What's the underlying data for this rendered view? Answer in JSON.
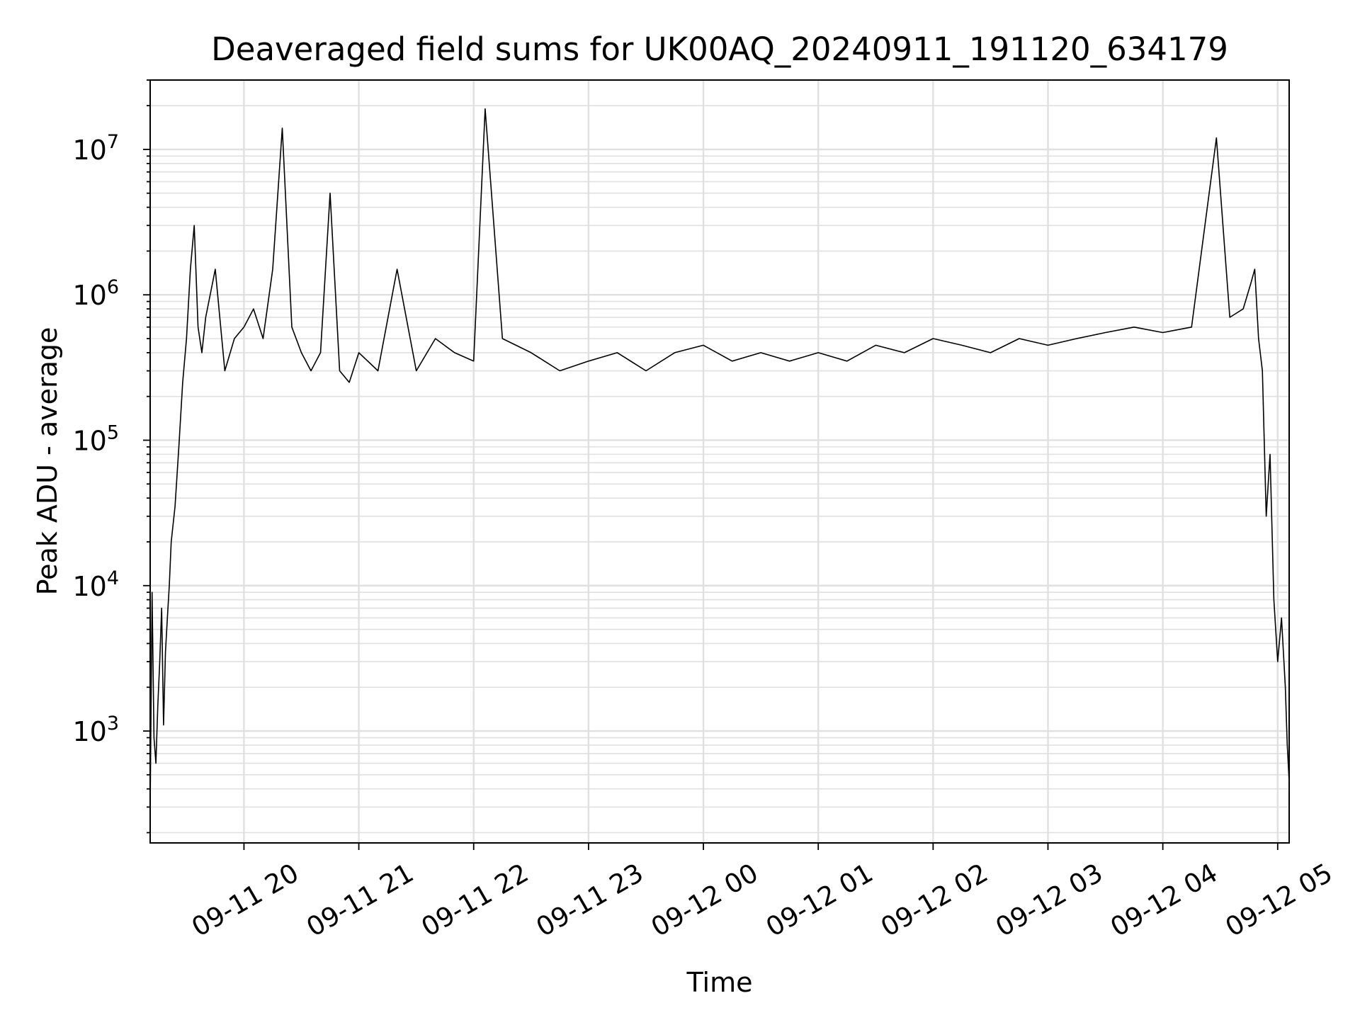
{
  "chart_data": {
    "type": "line",
    "title": "Deaveraged field sums for UK00AQ_20240911_191120_634179",
    "xlabel": "Time",
    "ylabel": "Peak ADU - average",
    "yscale": "log",
    "grid": true,
    "grid_minor": true,
    "legend": "none",
    "line_color": "#000000",
    "grid_color": "#e0e0e0",
    "xlim": [
      "2024-09-11 19:11",
      "2024-09-12 05:06"
    ],
    "ylim": [
      170,
      30000000
    ],
    "x_ticks": [
      {
        "time": "2024-09-11 20:00",
        "label": "09-11 20"
      },
      {
        "time": "2024-09-11 21:00",
        "label": "09-11 21"
      },
      {
        "time": "2024-09-11 22:00",
        "label": "09-11 22"
      },
      {
        "time": "2024-09-11 23:00",
        "label": "09-11 23"
      },
      {
        "time": "2024-09-12 00:00",
        "label": "09-12 00"
      },
      {
        "time": "2024-09-12 01:00",
        "label": "09-12 01"
      },
      {
        "time": "2024-09-12 02:00",
        "label": "09-12 02"
      },
      {
        "time": "2024-09-12 03:00",
        "label": "09-12 03"
      },
      {
        "time": "2024-09-12 04:00",
        "label": "09-12 04"
      },
      {
        "time": "2024-09-12 05:00",
        "label": "09-12 05"
      }
    ],
    "y_ticks": [
      {
        "value": 1000,
        "label": "10",
        "exp": "3"
      },
      {
        "value": 10000,
        "label": "10",
        "exp": "4"
      },
      {
        "value": 100000,
        "label": "10",
        "exp": "5"
      },
      {
        "value": 1000000,
        "label": "10",
        "exp": "6"
      },
      {
        "value": 10000000,
        "label": "10",
        "exp": "7"
      }
    ],
    "series": [
      {
        "x": [
          "2024-09-11 19:11",
          "2024-09-11 19:12",
          "2024-09-11 19:13",
          "2024-09-11 19:14",
          "2024-09-11 19:15",
          "2024-09-11 19:16",
          "2024-09-11 19:17",
          "2024-09-11 19:18",
          "2024-09-11 19:19",
          "2024-09-11 19:20",
          "2024-09-11 19:21",
          "2024-09-11 19:22",
          "2024-09-11 19:24",
          "2024-09-11 19:26",
          "2024-09-11 19:28",
          "2024-09-11 19:30",
          "2024-09-11 19:32",
          "2024-09-11 19:34",
          "2024-09-11 19:36",
          "2024-09-11 19:38",
          "2024-09-11 19:40",
          "2024-09-11 19:45",
          "2024-09-11 19:50",
          "2024-09-11 19:55",
          "2024-09-11 20:00",
          "2024-09-11 20:05",
          "2024-09-11 20:10",
          "2024-09-11 20:15",
          "2024-09-11 20:20",
          "2024-09-11 20:25",
          "2024-09-11 20:30",
          "2024-09-11 20:35",
          "2024-09-11 20:40",
          "2024-09-11 20:45",
          "2024-09-11 20:50",
          "2024-09-11 20:55",
          "2024-09-11 21:00",
          "2024-09-11 21:10",
          "2024-09-11 21:20",
          "2024-09-11 21:30",
          "2024-09-11 21:40",
          "2024-09-11 21:50",
          "2024-09-11 22:00",
          "2024-09-11 22:06",
          "2024-09-11 22:15",
          "2024-09-11 22:30",
          "2024-09-11 22:45",
          "2024-09-11 23:00",
          "2024-09-11 23:15",
          "2024-09-11 23:30",
          "2024-09-11 23:45",
          "2024-09-12 00:00",
          "2024-09-12 00:15",
          "2024-09-12 00:30",
          "2024-09-12 00:45",
          "2024-09-12 01:00",
          "2024-09-12 01:15",
          "2024-09-12 01:30",
          "2024-09-12 01:45",
          "2024-09-12 02:00",
          "2024-09-12 02:15",
          "2024-09-12 02:30",
          "2024-09-12 02:45",
          "2024-09-12 03:00",
          "2024-09-12 03:15",
          "2024-09-12 03:30",
          "2024-09-12 03:45",
          "2024-09-12 04:00",
          "2024-09-12 04:15",
          "2024-09-12 04:28",
          "2024-09-12 04:35",
          "2024-09-12 04:42",
          "2024-09-12 04:46",
          "2024-09-12 04:48",
          "2024-09-12 04:50",
          "2024-09-12 04:52",
          "2024-09-12 04:54",
          "2024-09-12 04:56",
          "2024-09-12 04:58",
          "2024-09-12 05:00",
          "2024-09-12 05:02",
          "2024-09-12 05:04",
          "2024-09-12 05:05",
          "2024-09-12 05:06"
        ],
        "values": [
          300,
          9000,
          900,
          600,
          1500,
          3000,
          7000,
          1100,
          3500,
          6000,
          10000,
          20000,
          35000,
          90000,
          250000,
          500000,
          1500000,
          3000000,
          600000,
          400000,
          700000,
          1500000,
          300000,
          500000,
          600000,
          800000,
          500000,
          1500000,
          14000000,
          600000,
          400000,
          300000,
          400000,
          5000000,
          300000,
          250000,
          400000,
          300000,
          1500000,
          300000,
          500000,
          400000,
          350000,
          19000000,
          500000,
          400000,
          300000,
          350000,
          400000,
          300000,
          400000,
          450000,
          350000,
          400000,
          350000,
          400000,
          350000,
          450000,
          400000,
          500000,
          450000,
          400000,
          500000,
          450000,
          500000,
          550000,
          600000,
          550000,
          600000,
          12000000,
          700000,
          800000,
          1200000,
          1500000,
          500000,
          300000,
          30000,
          80000,
          8000,
          3000,
          6000,
          2000,
          800,
          450
        ]
      }
    ]
  }
}
